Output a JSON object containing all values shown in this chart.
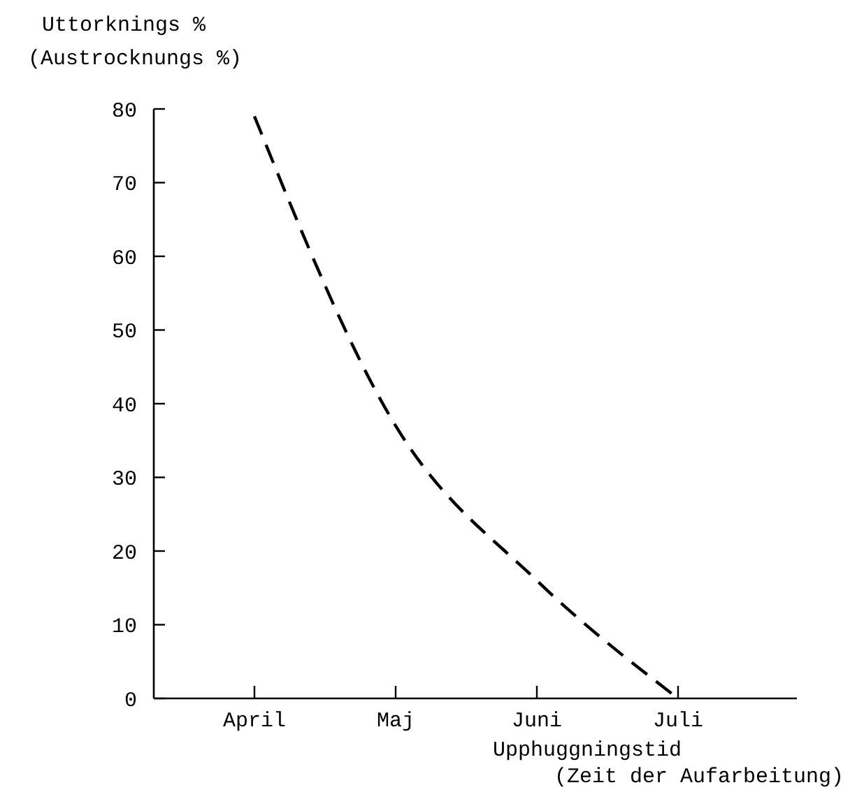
{
  "chart_data": {
    "type": "line",
    "ylabel": "Uttorknings %\n(Austrocknungs %)",
    "xlabel": "Upphuggningstid\n(Zeit der Aufarbeitung)",
    "categories": [
      "April",
      "Maj",
      "Juni",
      "Juli"
    ],
    "series": [
      {
        "color": "#000000",
        "values": [
          79,
          37,
          16,
          0
        ]
      }
    ],
    "ylim": [
      0,
      80
    ],
    "yticks": [
      0,
      10,
      20,
      30,
      40,
      50,
      60,
      70,
      80
    ],
    "grid": false,
    "marker": "none",
    "line_style": "dashed"
  }
}
